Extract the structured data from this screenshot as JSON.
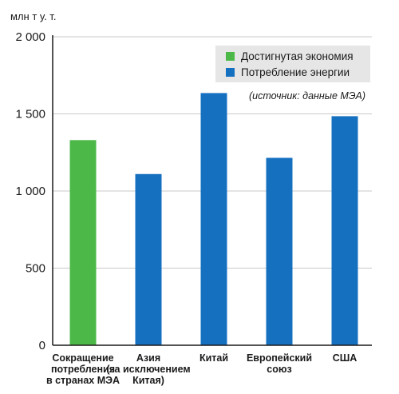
{
  "chart_data": {
    "type": "bar",
    "unit_label": "млн т у. т.",
    "categories": [
      [
        "Сокращение",
        "потребления",
        "в странах МЭА"
      ],
      [
        "Азия",
        "(за исключением",
        "Китая)"
      ],
      [
        "Китай"
      ],
      [
        "Европейский",
        "союз"
      ],
      [
        "США"
      ]
    ],
    "values": [
      1330,
      1110,
      1635,
      1215,
      1485
    ],
    "series_index": [
      0,
      1,
      1,
      1,
      1
    ],
    "series": [
      {
        "name": "Достигнутая экономия",
        "color": "#4cb848"
      },
      {
        "name": "Потребление энергии",
        "color": "#1670c0"
      }
    ],
    "yticks": [
      0,
      500,
      1000,
      1500,
      2000
    ],
    "ytick_labels": [
      "0",
      "500",
      "1 000",
      "1 500",
      "2 000"
    ],
    "ylim": [
      0,
      2000
    ],
    "grid": "horizontal",
    "legend_position": "top-right",
    "annotation": "(источник: данные МЭА)"
  },
  "colors": {
    "grid": "#c9c9c9",
    "axis": "#1a1a1a",
    "legend_bg": "#e6e6e6"
  }
}
